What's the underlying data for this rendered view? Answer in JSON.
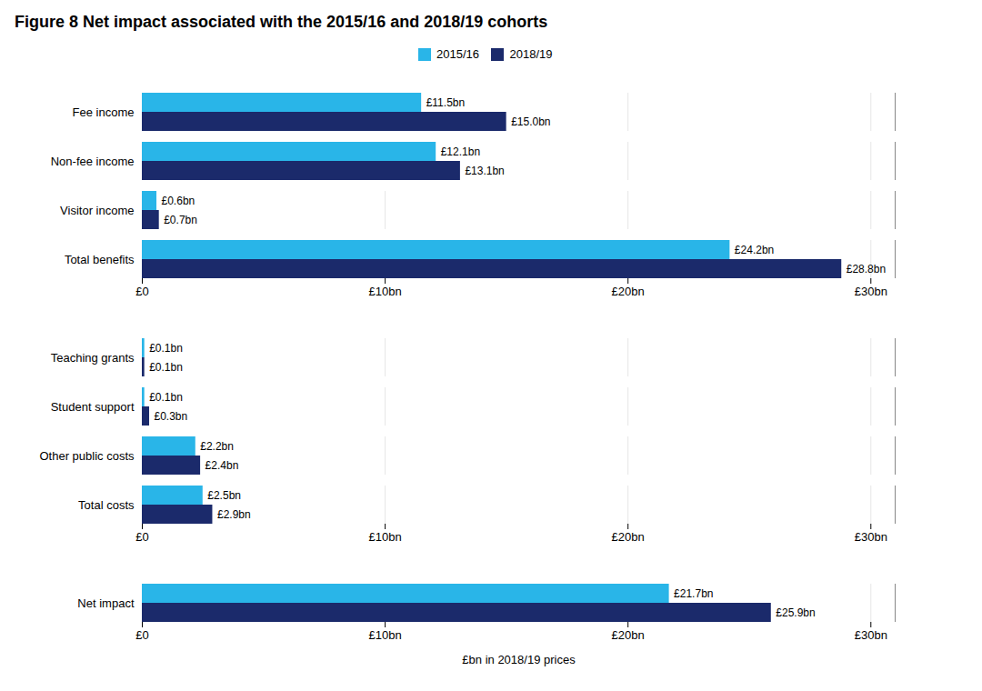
{
  "chart_data": {
    "type": "bar",
    "orientation": "horizontal",
    "title": "Figure 8    Net impact associated with the 2015/16 and 2018/19 cohorts",
    "xlabel": "£bn in 2018/19 prices",
    "categories": [
      "Fee income",
      "Non-fee income",
      "Visitor income",
      "Total benefits",
      null,
      "Teaching grants",
      "Student support",
      "Other public costs",
      "Total costs",
      null,
      "Net impact"
    ],
    "series": [
      {
        "name": "2015/16",
        "color": "#29B5E8",
        "values": [
          11.5,
          12.1,
          0.6,
          24.2,
          null,
          0.1,
          0.1,
          2.2,
          2.5,
          null,
          21.7
        ],
        "value_labels": [
          "£11.5bn",
          "£12.1bn",
          "£0.6bn",
          "£24.2bn",
          null,
          "£0.1bn",
          "£0.1bn",
          "£2.2bn",
          "£2.5bn",
          null,
          "£21.7bn"
        ]
      },
      {
        "name": "2018/19",
        "color": "#1B2A6B",
        "values": [
          15.0,
          13.1,
          0.7,
          28.8,
          null,
          0.1,
          0.3,
          2.4,
          2.9,
          null,
          25.9
        ],
        "value_labels": [
          "£15.0bn",
          "£13.1bn",
          "£0.7bn",
          "£28.8bn",
          null,
          "£0.1bn",
          "£0.3bn",
          "£2.4bn",
          "£2.9bn",
          null,
          "£25.9bn"
        ]
      }
    ],
    "xlim": [
      0,
      31
    ],
    "xticks": [
      {
        "value": 0,
        "label": "£0"
      },
      {
        "value": 10,
        "label": "£10bn"
      },
      {
        "value": 20,
        "label": "£20bn"
      },
      {
        "value": 30,
        "label": "£30bn"
      }
    ],
    "grid": true,
    "legend": "top",
    "data_labels": true
  }
}
